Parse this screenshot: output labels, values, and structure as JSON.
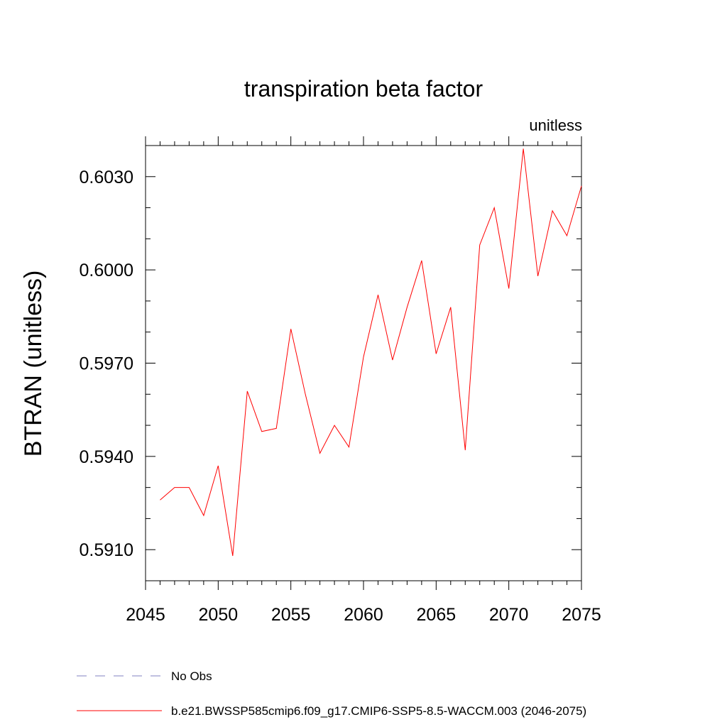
{
  "chart_data": {
    "type": "line",
    "title": "transpiration beta factor",
    "units_label": "unitless",
    "ylabel": "BTRAN  (unitless)",
    "xlabel": "",
    "xlim": [
      2045,
      2075
    ],
    "ylim": [
      0.59,
      0.604
    ],
    "x_ticks": [
      "2045",
      "2050",
      "2055",
      "2060",
      "2065",
      "2070",
      "2075"
    ],
    "y_ticks": [
      "0.5910",
      "0.5940",
      "0.5970",
      "0.6000",
      "0.6030"
    ],
    "x": [
      2046,
      2047,
      2048,
      2049,
      2050,
      2051,
      2052,
      2053,
      2054,
      2055,
      2056,
      2057,
      2058,
      2059,
      2060,
      2061,
      2062,
      2063,
      2064,
      2065,
      2066,
      2067,
      2068,
      2069,
      2070,
      2071,
      2072,
      2073,
      2074,
      2075
    ],
    "series": [
      {
        "name": "b.e21.BWSSP585cmip6.f09_g17.CMIP6-SSP5-8.5-WACCM.003 (2046-2075)",
        "color": "#ff0000",
        "values": [
          0.5926,
          0.593,
          0.593,
          0.5921,
          0.5937,
          0.5908,
          0.5961,
          0.5948,
          0.5949,
          0.5981,
          0.596,
          0.5941,
          0.595,
          0.5943,
          0.5972,
          0.5992,
          0.5971,
          0.5988,
          0.6003,
          0.5973,
          0.5988,
          0.5942,
          0.6008,
          0.602,
          0.5994,
          0.6039,
          0.5998,
          0.6019,
          0.6011,
          0.6027
        ]
      }
    ],
    "legend": [
      {
        "label": "No Obs",
        "style": "dashed",
        "color": "#8080c0"
      },
      {
        "label": "b.e21.BWSSP585cmip6.f09_g17.CMIP6-SSP5-8.5-WACCM.003 (2046-2075)",
        "style": "solid",
        "color": "#ff0000"
      }
    ],
    "grid": false,
    "legend_placement": "bottom"
  }
}
